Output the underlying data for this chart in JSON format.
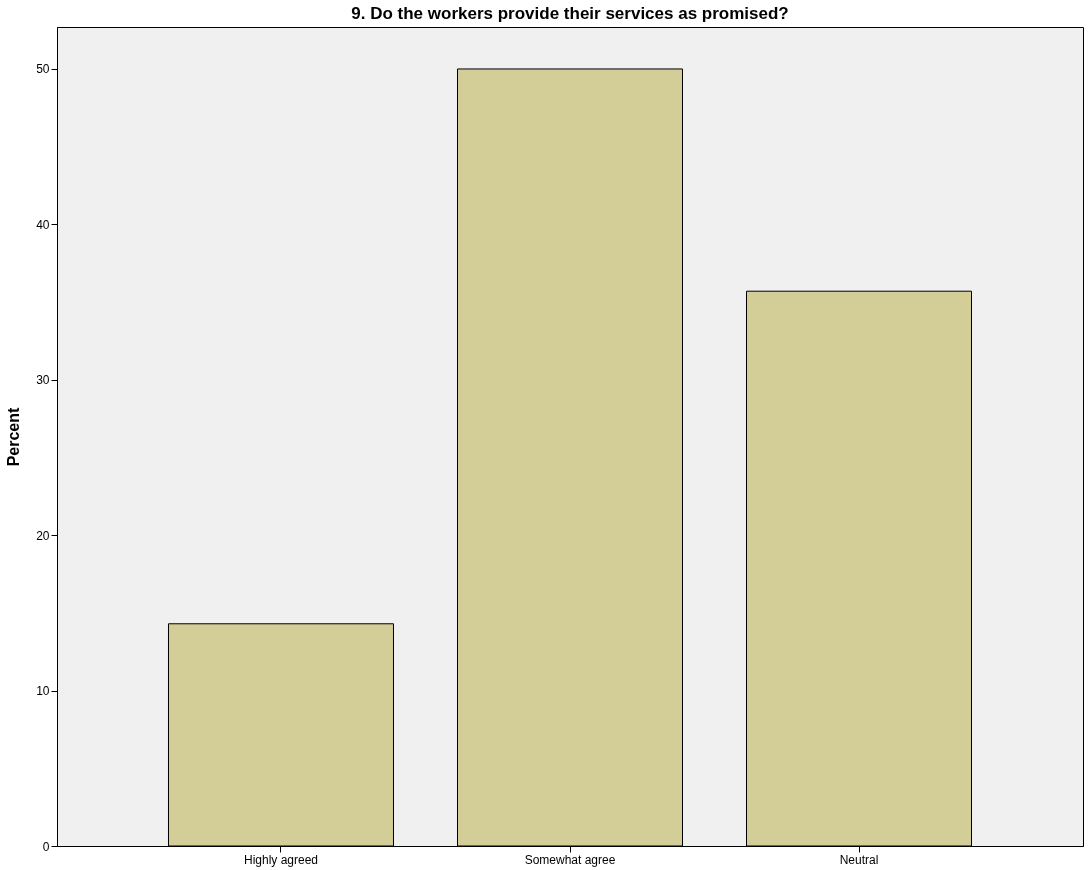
{
  "chart_data": {
    "type": "bar",
    "title": "9. Do the workers provide their services as promised?",
    "ylabel": "Percent",
    "categories": [
      "Highly agreed",
      "Somewhat agree",
      "Neutral"
    ],
    "values": [
      14.3,
      50.0,
      35.7
    ],
    "color": "#d3ce97",
    "ylim": [
      0,
      52.7
    ],
    "yticks": [
      0,
      10,
      20,
      30,
      40,
      50
    ],
    "grid": false
  }
}
